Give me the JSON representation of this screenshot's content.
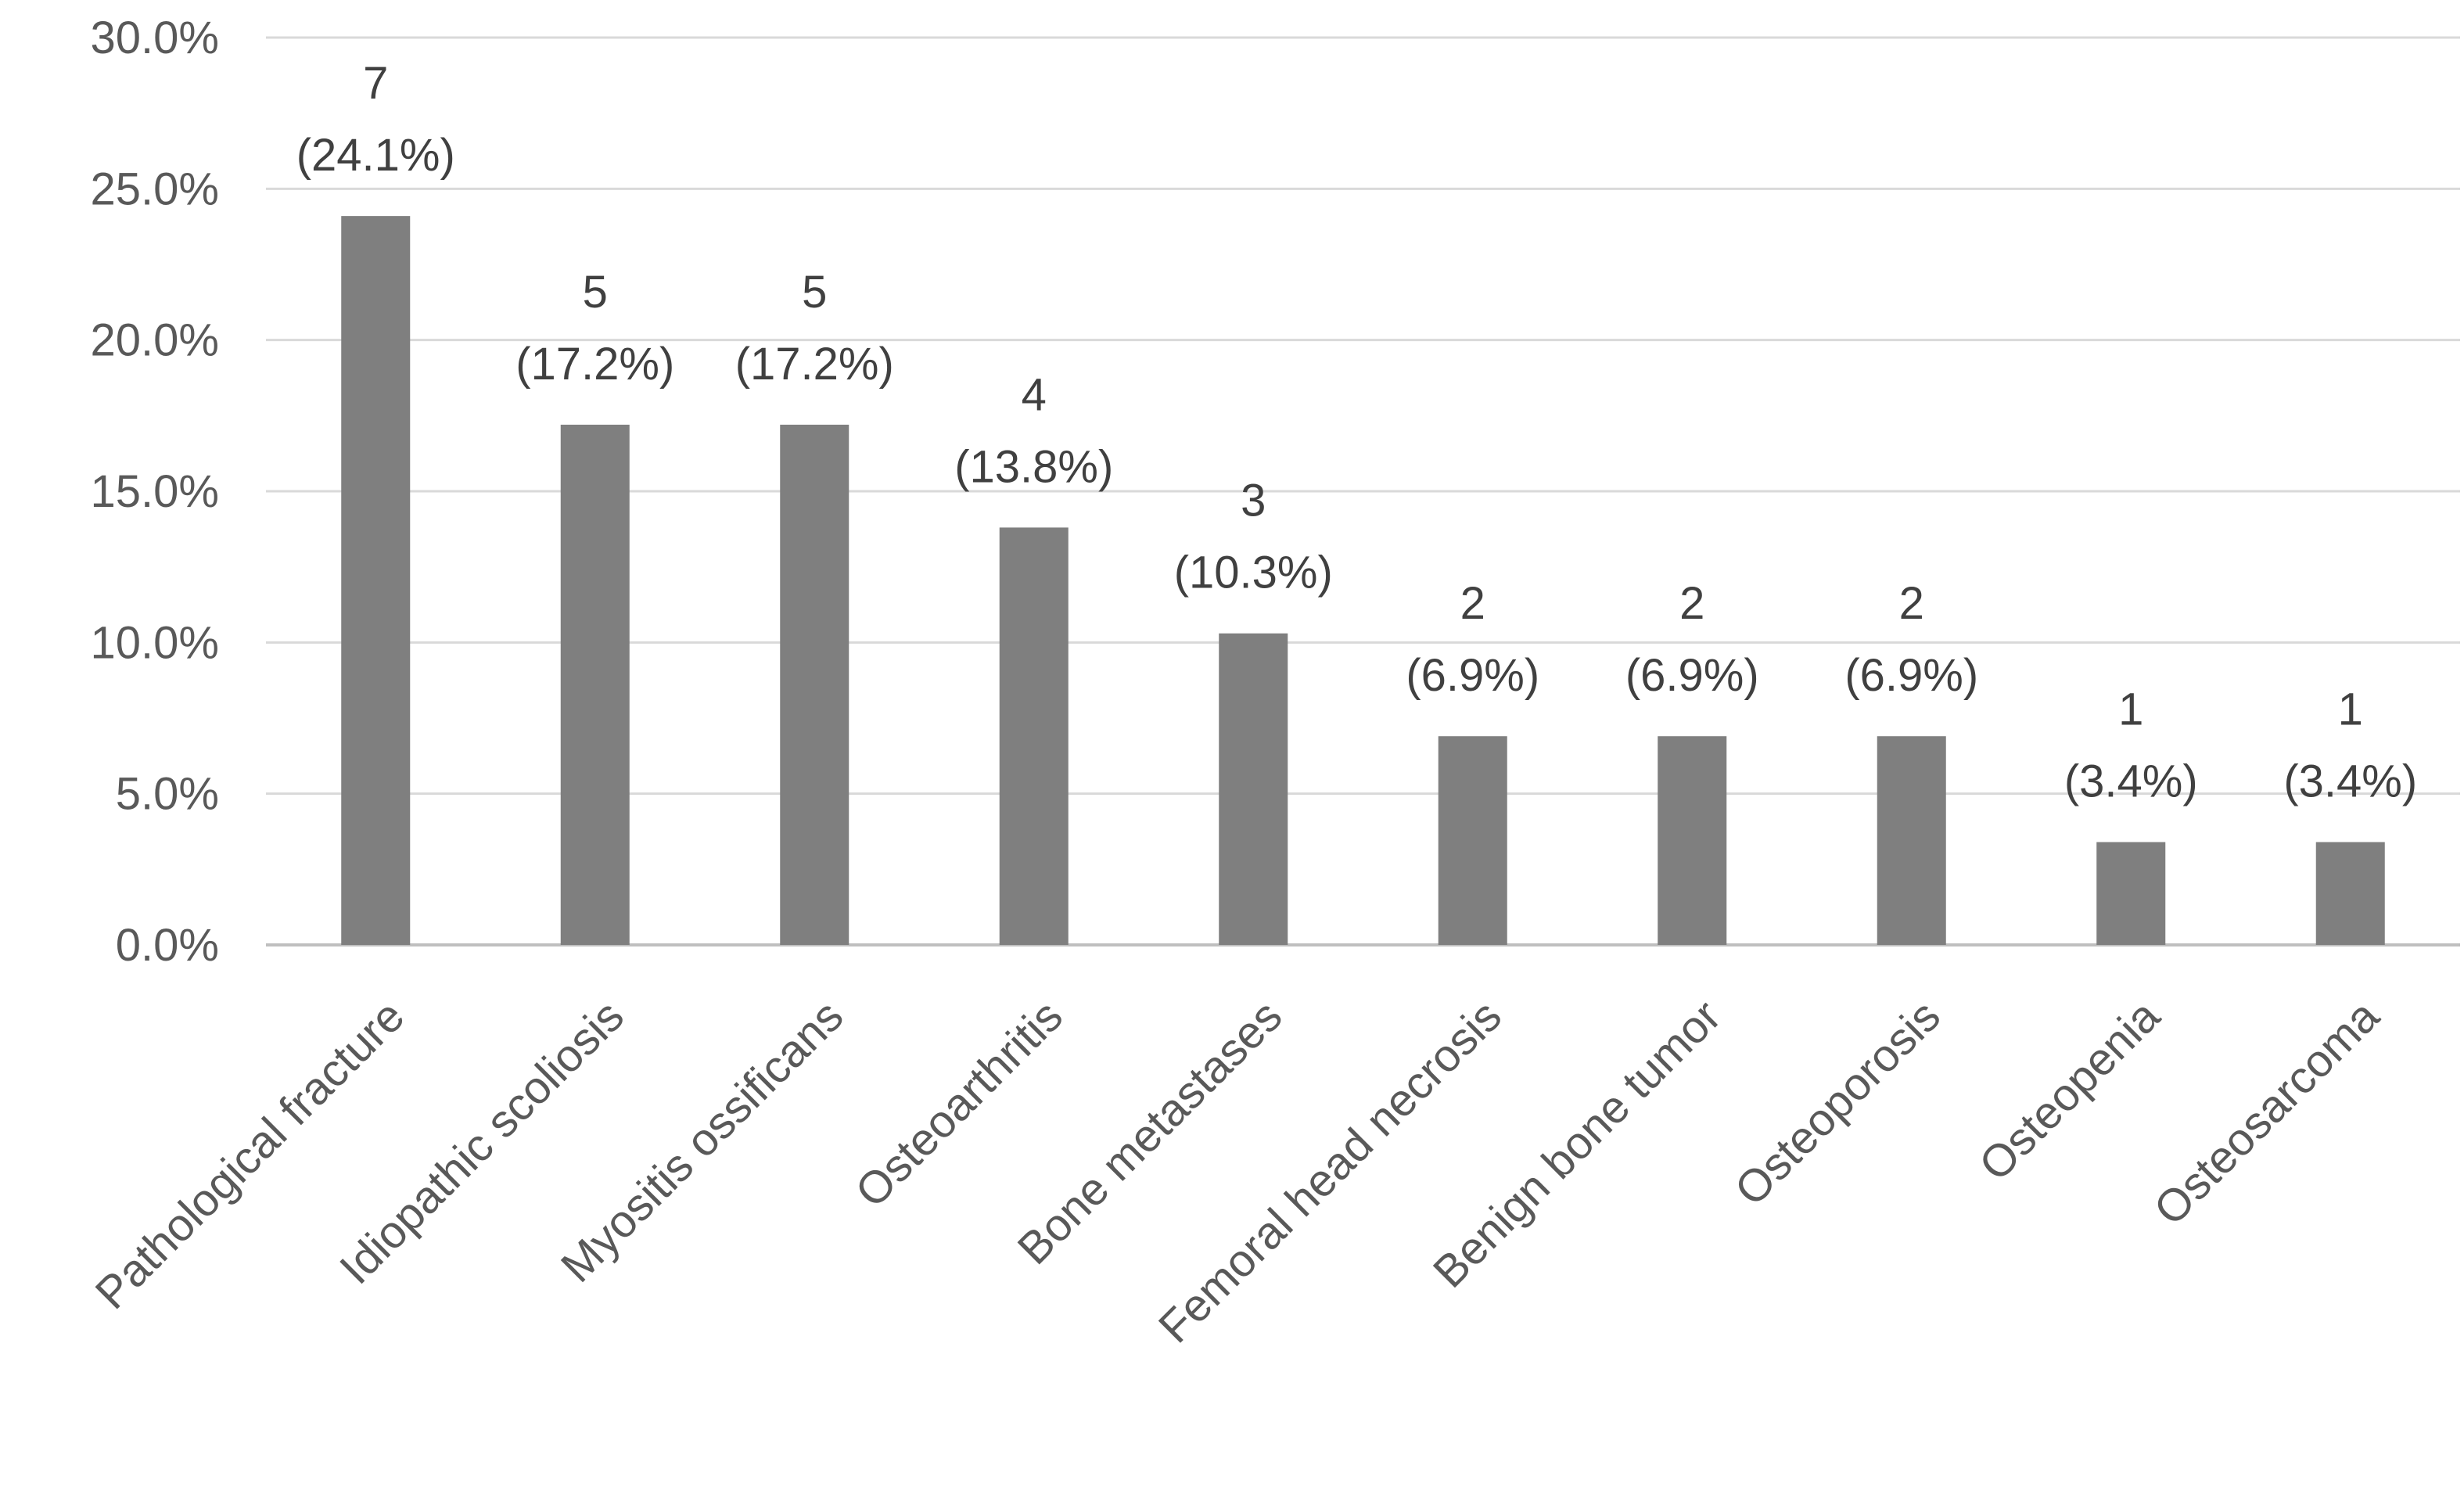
{
  "chart_data": {
    "type": "bar",
    "categories": [
      "Pathological fracture",
      "Idiopathic scoliosis",
      "Myositis ossificans",
      "Osteoarthritis",
      "Bone metastases",
      "Femoral head necrosis",
      "Benign bone tumor",
      "Osteoporosis",
      "Osteopenia",
      "Osteosarcoma"
    ],
    "values": [
      24.1,
      17.2,
      17.2,
      13.8,
      10.3,
      6.9,
      6.9,
      6.9,
      3.4,
      3.4
    ],
    "counts": [
      "7",
      "5",
      "5",
      "4",
      "3",
      "2",
      "2",
      "2",
      "1",
      "1"
    ],
    "percent_labels": [
      "(24.1%)",
      "(17.2%)",
      "(17.2%)",
      "(13.8%)",
      "(10.3%)",
      "(6.9%)",
      "(6.9%)",
      "(6.9%)",
      "(3.4%)",
      "(3.4%)"
    ],
    "y_ticks": [
      "0.0%",
      "5.0%",
      "10.0%",
      "15.0%",
      "20.0%",
      "25.0%",
      "30.0%"
    ],
    "ylim": [
      0,
      30
    ],
    "grid": true,
    "legend": "none",
    "colors": {
      "bar": "#7f7f7f",
      "grid": "#d9d9d9",
      "axis": "#bfbfbf"
    }
  }
}
